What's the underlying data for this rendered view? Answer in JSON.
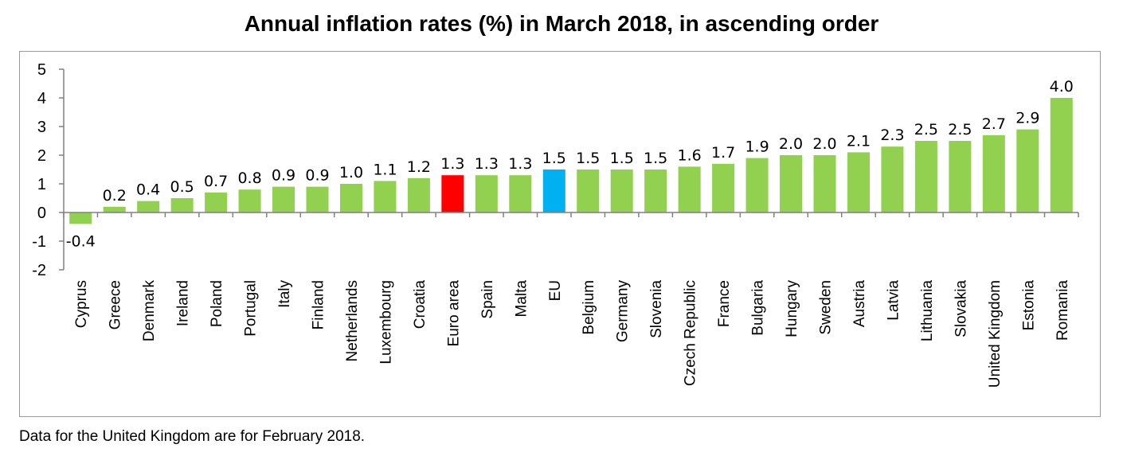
{
  "chart_data": {
    "type": "bar",
    "title": "Annual inflation rates (%) in March 2018, in ascending order",
    "xlabel": "",
    "ylabel": "",
    "ylim": [
      -2,
      5
    ],
    "yticks": [
      5,
      4,
      3,
      2,
      1,
      0,
      -1,
      -2
    ],
    "categories": [
      "Cyprus",
      "Greece",
      "Denmark",
      "Ireland",
      "Poland",
      "Portugal",
      "Italy",
      "Finland",
      "Netherlands",
      "Luxembourg",
      "Croatia",
      "Euro area",
      "Spain",
      "Malta",
      "EU",
      "Belgium",
      "Germany",
      "Slovenia",
      "Czech Republic",
      "France",
      "Bulgaria",
      "Hungary",
      "Sweden",
      "Austria",
      "Latvia",
      "Lithuania",
      "Slovakia",
      "United Kingdom",
      "Estonia",
      "Romania"
    ],
    "values": [
      -0.4,
      0.2,
      0.4,
      0.5,
      0.7,
      0.8,
      0.9,
      0.9,
      1.0,
      1.1,
      1.2,
      1.3,
      1.3,
      1.3,
      1.5,
      1.5,
      1.5,
      1.5,
      1.6,
      1.7,
      1.9,
      2.0,
      2.0,
      2.1,
      2.3,
      2.5,
      2.5,
      2.7,
      2.9,
      4.0
    ],
    "value_labels": [
      "-0.4",
      "0.2",
      "0.4",
      "0.5",
      "0.7",
      "0.8",
      "0.9",
      "0.9",
      "1.0",
      "1.1",
      "1.2",
      "1.3",
      "1.3",
      "1.3",
      "1.5",
      "1.5",
      "1.5",
      "1.5",
      "1.6",
      "1.7",
      "1.9",
      "2.0",
      "2.0",
      "2.1",
      "2.3",
      "2.5",
      "2.5",
      "2.7",
      "2.9",
      "4.0"
    ],
    "colors": {
      "default": "#92d050",
      "Euro area": "#ff0000",
      "EU": "#00b0f0"
    },
    "grid": false,
    "legend": "none"
  },
  "footnote": "Data for the United Kingdom are for February 2018."
}
